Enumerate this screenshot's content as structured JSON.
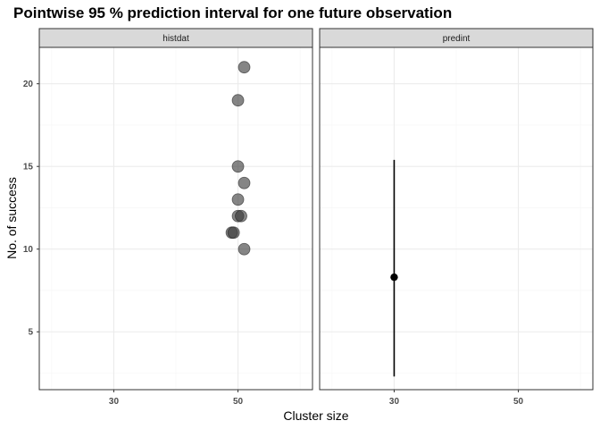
{
  "chart_data": {
    "type": "scatter",
    "title": "Pointwise 95 % prediction interval for one future observation",
    "xlabel": "Cluster size",
    "ylabel": "No. of success",
    "xlim": [
      18,
      62
    ],
    "ylim": [
      1.5,
      22.2
    ],
    "x_ticks": [
      30,
      50
    ],
    "y_ticks": [
      5,
      10,
      15,
      20
    ],
    "grid": true,
    "legend": "none",
    "panels": [
      {
        "name": "histdat",
        "series": [
          {
            "type": "scatter",
            "points": [
              {
                "x": 51,
                "y": 21
              },
              {
                "x": 50,
                "y": 19
              },
              {
                "x": 50,
                "y": 15
              },
              {
                "x": 51,
                "y": 14
              },
              {
                "x": 50,
                "y": 13
              },
              {
                "x": 50,
                "y": 12
              },
              {
                "x": 50.5,
                "y": 12
              },
              {
                "x": 49,
                "y": 11
              },
              {
                "x": 49.3,
                "y": 11
              },
              {
                "x": 51,
                "y": 10
              }
            ]
          }
        ]
      },
      {
        "name": "predint",
        "series": [
          {
            "type": "pointrange",
            "x": 30,
            "y": 8.3,
            "lower": 2.3,
            "upper": 15.4
          }
        ]
      }
    ],
    "colors": {
      "point": "#333333",
      "strip_fill": "#d9d9d9",
      "panel_border": "#333333",
      "grid_major": "#ebebeb",
      "grid_minor": "#f5f5f5"
    }
  }
}
